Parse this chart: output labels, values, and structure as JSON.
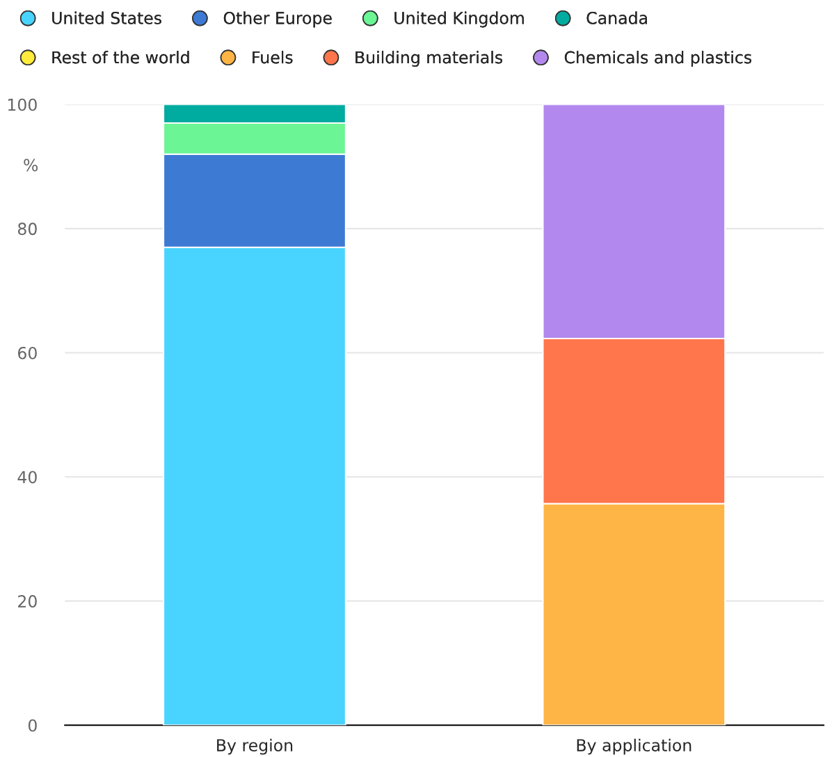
{
  "chart_data": {
    "type": "bar",
    "stacked": true,
    "ylabel": "%",
    "categories": [
      "By region",
      "By application"
    ],
    "series": [
      {
        "name": "United States",
        "color": "#48d4ff",
        "values": [
          77,
          null
        ]
      },
      {
        "name": "Other Europe",
        "color": "#3d7ad4",
        "values": [
          15,
          null
        ]
      },
      {
        "name": "United Kingdom",
        "color": "#6bf594",
        "values": [
          5,
          null
        ]
      },
      {
        "name": "Canada",
        "color": "#00ab9f",
        "values": [
          3,
          null
        ]
      },
      {
        "name": "Rest of the world",
        "color": "#ffeb3b",
        "values": [
          null,
          null
        ]
      },
      {
        "name": "Fuels",
        "color": "#ffb545",
        "values": [
          null,
          35.7
        ]
      },
      {
        "name": "Building materials",
        "color": "#ff764c",
        "values": [
          null,
          26.6
        ]
      },
      {
        "name": "Chemicals and plastics",
        "color": "#b388ee",
        "values": [
          null,
          37.7
        ]
      }
    ],
    "ylim": [
      0,
      100
    ],
    "yticks": [
      0,
      20,
      40,
      60,
      80,
      100
    ],
    "grid": "y",
    "legend": "top"
  }
}
